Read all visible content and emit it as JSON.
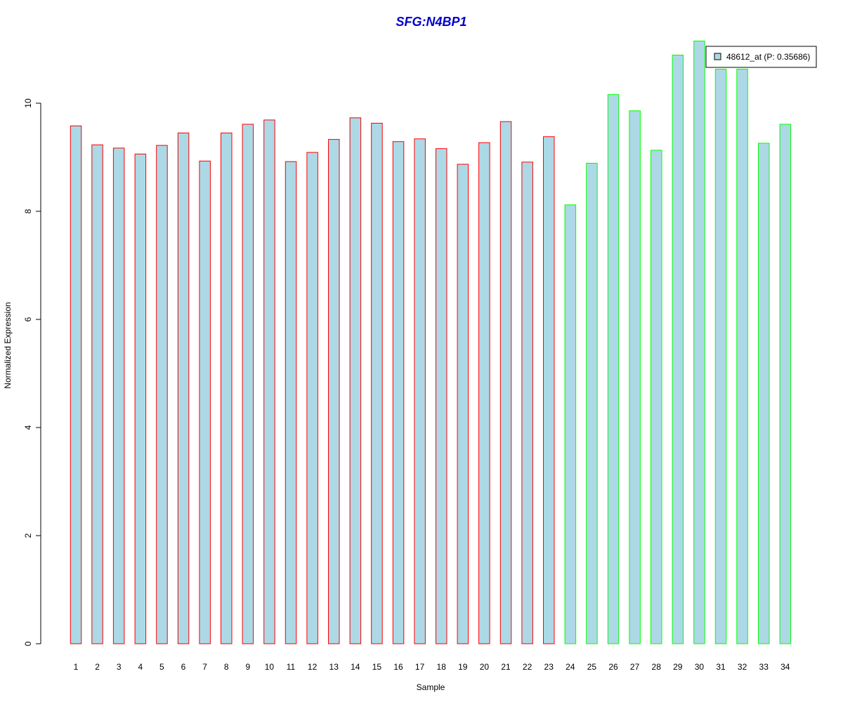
{
  "chart_data": {
    "type": "bar",
    "title": "SFG:N4BP1",
    "xlabel": "Sample",
    "ylabel": "Normalized Expression",
    "ylim": [
      0,
      11.2
    ],
    "y_ticks": [
      0,
      2,
      4,
      6,
      8,
      10
    ],
    "grid": false,
    "legend_position": "top-right",
    "categories": [
      "1",
      "2",
      "3",
      "4",
      "5",
      "6",
      "7",
      "8",
      "9",
      "10",
      "11",
      "12",
      "13",
      "14",
      "15",
      "16",
      "17",
      "18",
      "19",
      "20",
      "21",
      "22",
      "23",
      "24",
      "25",
      "26",
      "27",
      "28",
      "29",
      "30",
      "31",
      "32",
      "33",
      "34"
    ],
    "series": [
      {
        "name": "48612_at (P: 0.35686)",
        "values": [
          9.58,
          9.23,
          9.17,
          9.06,
          9.22,
          9.45,
          8.93,
          9.45,
          9.61,
          9.69,
          8.92,
          9.09,
          9.33,
          9.73,
          9.63,
          9.29,
          9.34,
          9.16,
          8.87,
          9.27,
          9.66,
          8.91,
          9.38,
          8.12,
          8.89,
          10.16,
          9.86,
          9.13,
          10.89,
          11.15,
          10.63,
          10.63,
          9.26,
          9.61
        ]
      }
    ],
    "group_sizes": [
      23,
      11
    ],
    "colors": {
      "fill": "#add8e6",
      "group1_border": "#ff0000",
      "group2_border": "#00ff00",
      "title": "#0000cd",
      "axis": "#000000"
    }
  }
}
